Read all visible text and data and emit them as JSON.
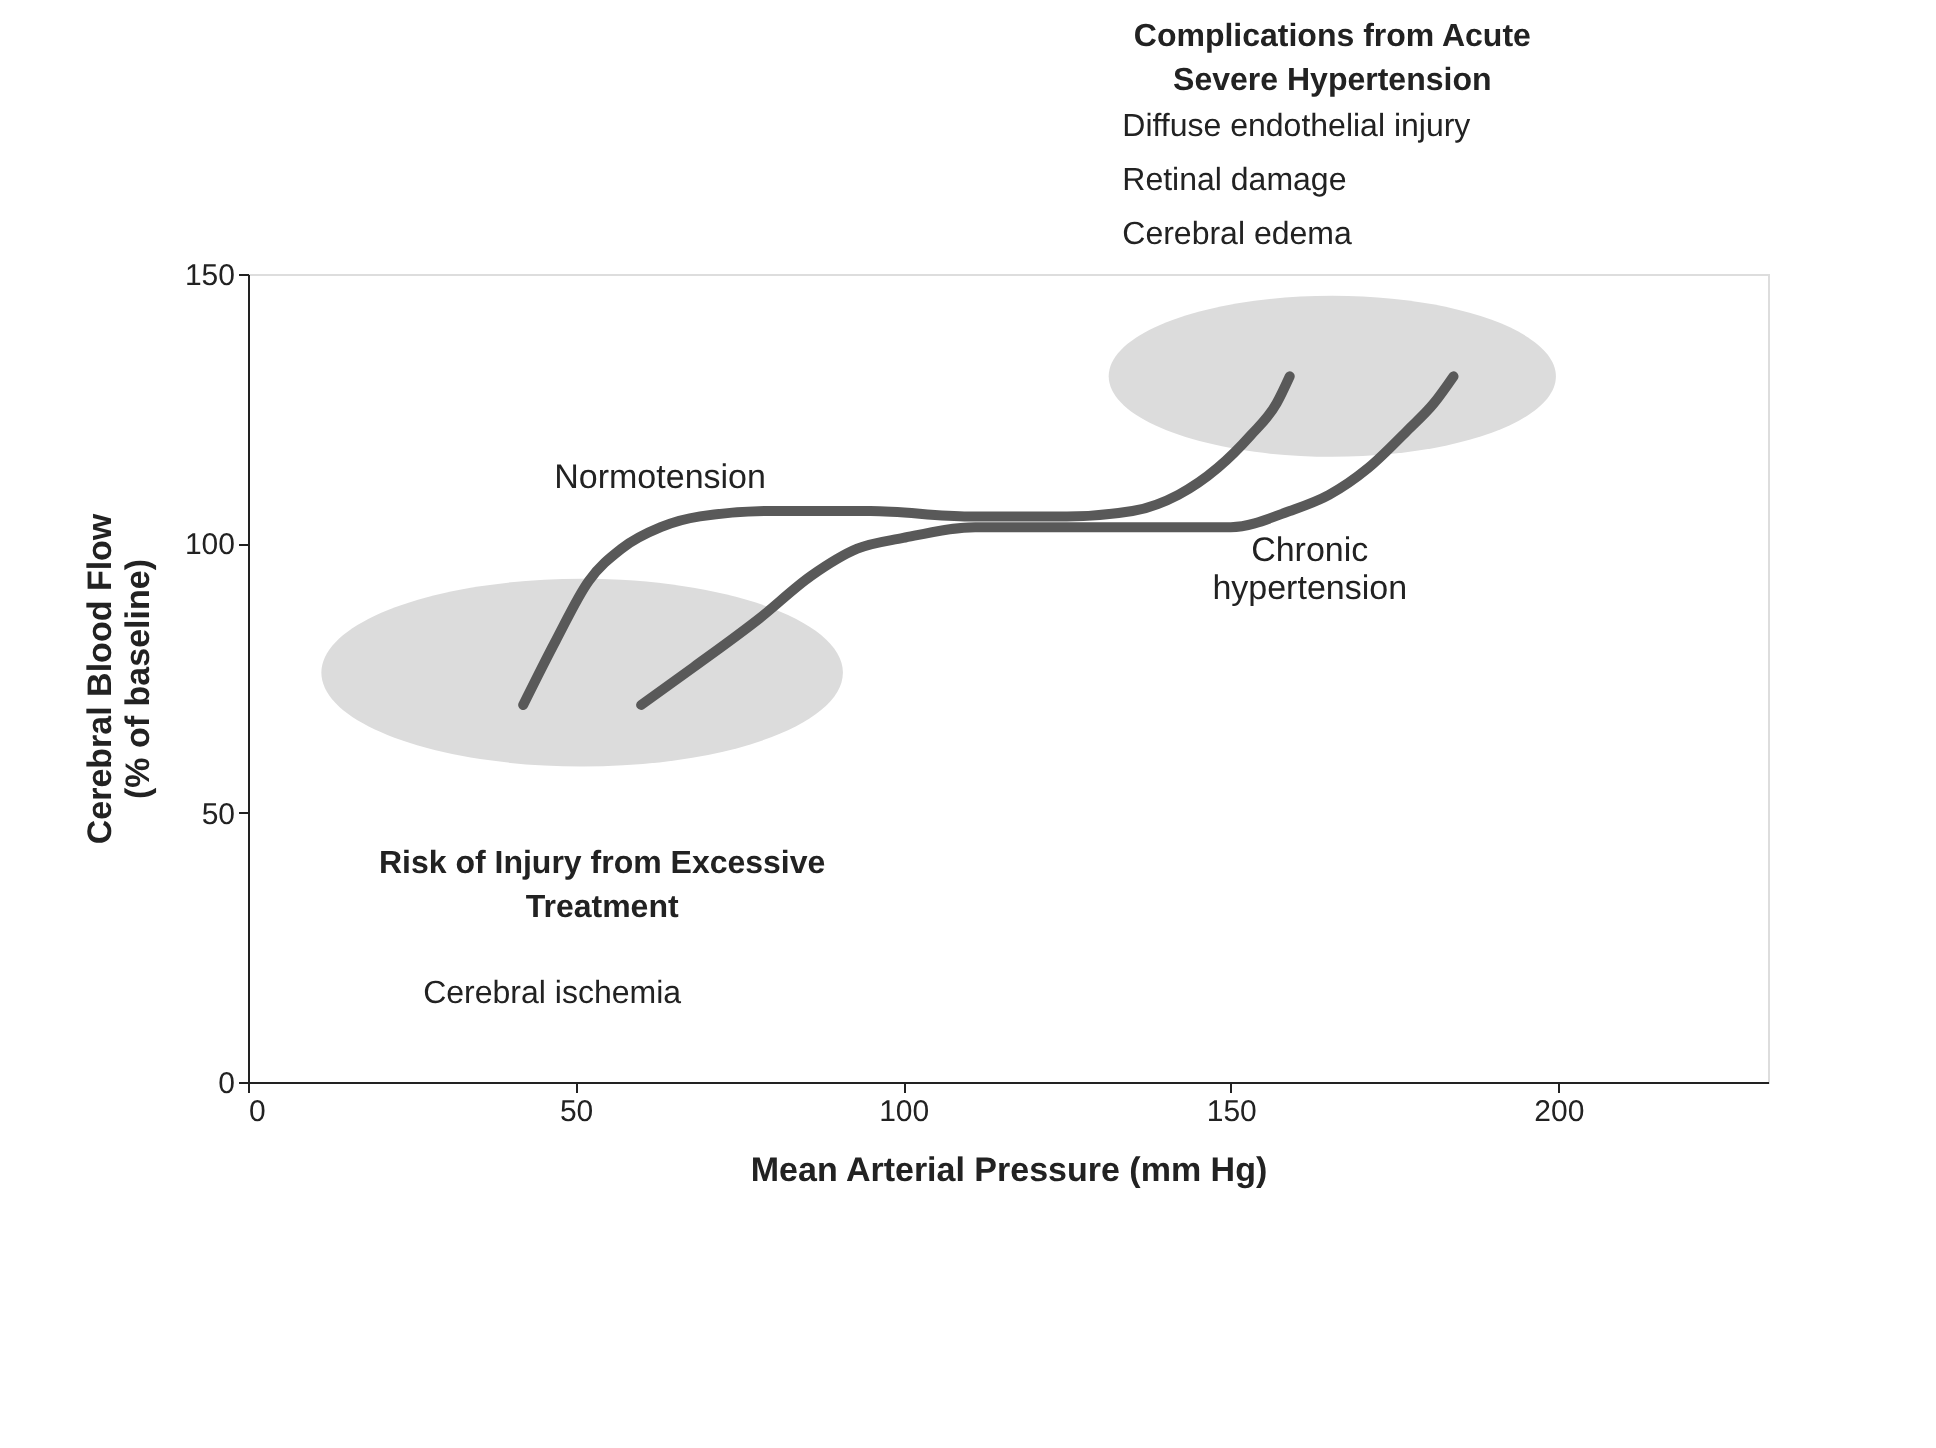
{
  "chart_data": {
    "type": "line",
    "xlabel": "Mean Arterial Pressure (mm Hg)",
    "ylabel": "Cerebral Blood Flow\n(% of baseline)",
    "xlim": [
      0,
      232
    ],
    "xticks": [
      0,
      50,
      100,
      150,
      200
    ],
    "ylim": [
      0,
      150
    ],
    "yticks": [
      0,
      50,
      100,
      150
    ],
    "grid": false,
    "marker": "none",
    "line_style": "solid",
    "series": [
      {
        "name": "Normotension",
        "color": "#595959",
        "x": [
          42,
          47,
          52,
          57,
          63,
          69,
          80,
          95,
          110,
          125,
          135,
          142,
          148,
          153,
          157,
          159
        ],
        "values": [
          70,
          82,
          93,
          99,
          103,
          105,
          106,
          106,
          105,
          105,
          106,
          109,
          114,
          120,
          126,
          131
        ]
      },
      {
        "name": "Chronic hypertension",
        "color": "#595959",
        "x": [
          60,
          68,
          78,
          86,
          93,
          100,
          111,
          130,
          150,
          159,
          165,
          171,
          177,
          181,
          184
        ],
        "values": [
          70,
          77,
          86,
          94,
          99,
          101,
          103,
          103,
          103,
          106,
          109,
          114,
          121,
          126,
          131
        ]
      }
    ],
    "annotations": [
      "Risk of Injury from Excessive\nTreatment",
      "Cerebral ischemia",
      "Complications from Acute\nSevere Hypertension",
      "Diffuse endothelial injury",
      "Retinal damage",
      "Cerebral edema"
    ]
  }
}
